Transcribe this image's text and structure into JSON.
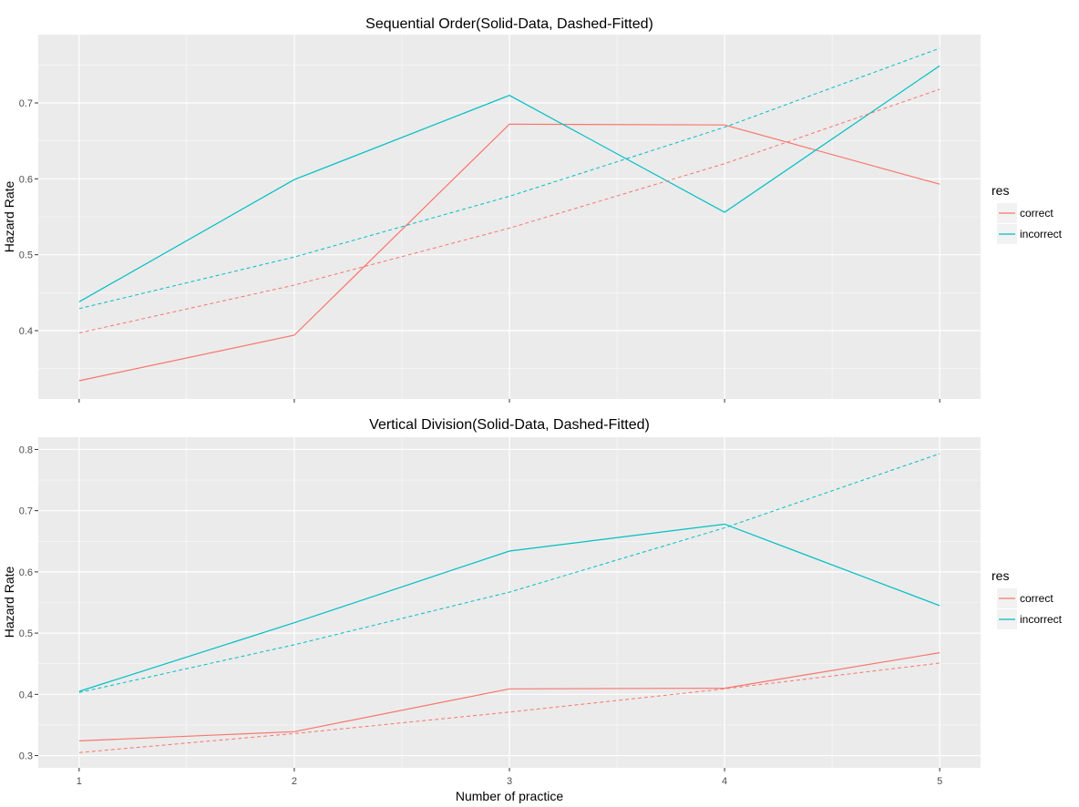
{
  "shared": {
    "xlabel": "Number of practice",
    "ylabel": "Hazard Rate",
    "legend_title": "res",
    "legend_position": "right",
    "series_colors": {
      "correct": "#F8766D",
      "incorrect": "#00BFC4"
    },
    "line_styles": {
      "data": "solid",
      "fitted": "dashed"
    },
    "panel_background": "#EBEBEB",
    "grid_color": "#FFFFFF"
  },
  "chart_data": [
    {
      "type": "line",
      "title": "Sequential Order(Solid-Data, Dashed-Fitted)",
      "xlabel": "",
      "ylabel": "Hazard Rate",
      "x": [
        1,
        2,
        3,
        4,
        5
      ],
      "x_ticks": [
        "1",
        "2",
        "3",
        "4",
        "5"
      ],
      "xlim": [
        0.81,
        5.19
      ],
      "ylim": [
        0.31,
        0.79
      ],
      "y_ticks": [
        0.4,
        0.5,
        0.6,
        0.7
      ],
      "y_tick_labels": [
        "0.4",
        "0.5",
        "0.6",
        "0.7"
      ],
      "grid": true,
      "legend": {
        "title": "res",
        "entries": [
          "correct",
          "incorrect"
        ],
        "position": "right"
      },
      "series": [
        {
          "name": "correct",
          "kind": "data",
          "color": "#F8766D",
          "dashed": false,
          "values": [
            0.334,
            0.394,
            0.672,
            0.671,
            0.593
          ]
        },
        {
          "name": "incorrect",
          "kind": "data",
          "color": "#00BFC4",
          "dashed": false,
          "values": [
            0.438,
            0.599,
            0.71,
            0.556,
            0.749
          ]
        },
        {
          "name": "correct",
          "kind": "fitted",
          "color": "#F8766D",
          "dashed": true,
          "values": [
            0.397,
            0.46,
            0.535,
            0.62,
            0.718
          ]
        },
        {
          "name": "incorrect",
          "kind": "fitted",
          "color": "#00BFC4",
          "dashed": true,
          "values": [
            0.429,
            0.497,
            0.577,
            0.668,
            0.772
          ]
        }
      ]
    },
    {
      "type": "line",
      "title": "Vertical Division(Solid-Data, Dashed-Fitted)",
      "xlabel": "Number of practice",
      "ylabel": "Hazard Rate",
      "x": [
        1,
        2,
        3,
        4,
        5
      ],
      "x_ticks": [
        "1",
        "2",
        "3",
        "4",
        "5"
      ],
      "xlim": [
        0.81,
        5.19
      ],
      "ylim": [
        0.28,
        0.82
      ],
      "y_ticks": [
        0.3,
        0.4,
        0.5,
        0.6,
        0.7,
        0.8
      ],
      "y_tick_labels": [
        "0.3",
        "0.4",
        "0.5",
        "0.6",
        "0.7",
        "0.8"
      ],
      "grid": true,
      "legend": {
        "title": "res",
        "entries": [
          "correct",
          "incorrect"
        ],
        "position": "right"
      },
      "series": [
        {
          "name": "correct",
          "kind": "data",
          "color": "#F8766D",
          "dashed": false,
          "values": [
            0.324,
            0.339,
            0.409,
            0.41,
            0.468
          ]
        },
        {
          "name": "incorrect",
          "kind": "data",
          "color": "#00BFC4",
          "dashed": false,
          "values": [
            0.405,
            0.517,
            0.634,
            0.678,
            0.545
          ]
        },
        {
          "name": "correct",
          "kind": "fitted",
          "color": "#F8766D",
          "dashed": true,
          "values": [
            0.305,
            0.336,
            0.371,
            0.409,
            0.451
          ]
        },
        {
          "name": "incorrect",
          "kind": "fitted",
          "color": "#00BFC4",
          "dashed": true,
          "values": [
            0.403,
            0.481,
            0.567,
            0.672,
            0.793
          ]
        }
      ]
    }
  ]
}
